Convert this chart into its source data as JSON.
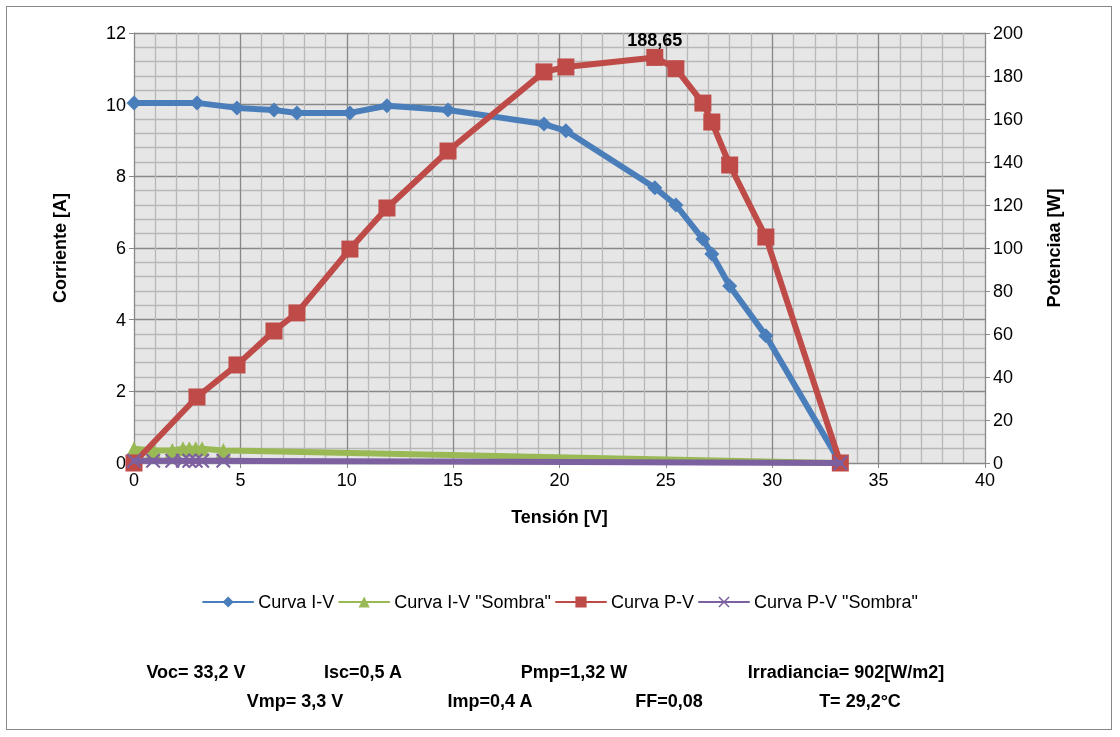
{
  "chart_data": {
    "type": "line",
    "xlabel": "Tensión [V]",
    "ylabel": "Corriente [A]",
    "y2label": "Potenciaa [W]",
    "xlim": [
      0,
      40
    ],
    "xticks": [
      0,
      5,
      10,
      15,
      20,
      25,
      30,
      35,
      40
    ],
    "ylim": [
      0,
      12
    ],
    "yticks": [
      0,
      2,
      4,
      6,
      8,
      10,
      12
    ],
    "y2lim": [
      0,
      200
    ],
    "y2ticks": [
      0,
      20,
      40,
      60,
      80,
      100,
      120,
      140,
      160,
      180,
      200
    ],
    "grid": true,
    "legend": "bottom",
    "series": [
      {
        "name": "Curva I-V",
        "color": "#4a7ebb",
        "marker": "diamond",
        "x": [
          0,
          2.96,
          4.84,
          6.58,
          7.66,
          10.15,
          11.89,
          14.76,
          19.27,
          20.3,
          24.48,
          25.47,
          26.74,
          27.16,
          28.0,
          29.7,
          33.2
        ],
        "values": [
          10.05,
          10.05,
          9.91,
          9.85,
          9.77,
          9.77,
          9.97,
          9.85,
          9.46,
          9.27,
          7.68,
          7.2,
          6.25,
          5.83,
          4.94,
          3.55,
          0
        ]
      },
      {
        "name": "Curva I-V \"Sombra\"",
        "color": "#98b954",
        "marker": "triangle",
        "x": [
          0,
          0.9,
          1.8,
          2.3,
          2.6,
          2.9,
          3.2,
          4.2,
          33.2
        ],
        "values": [
          0.4,
          0.35,
          0.35,
          0.4,
          0.4,
          0.4,
          0.4,
          0.35,
          0
        ]
      },
      {
        "name": "Curva P-V",
        "color": "#be4b48",
        "marker": "square",
        "axis": "y2",
        "x": [
          0,
          2.96,
          4.84,
          6.58,
          7.66,
          10.15,
          11.89,
          14.76,
          19.27,
          20.3,
          24.48,
          25.47,
          26.74,
          27.16,
          28.0,
          29.7,
          33.2
        ],
        "values": [
          0,
          30.7,
          45.6,
          61.4,
          69.8,
          99.5,
          118.6,
          145.1,
          181.9,
          184.2,
          188.65,
          183.4,
          167.4,
          158.6,
          138.6,
          105.1,
          0
        ],
        "value_labels": [
          null,
          null,
          null,
          null,
          null,
          null,
          null,
          null,
          null,
          null,
          "188,65",
          null,
          null,
          null,
          null,
          null,
          null
        ]
      },
      {
        "name": "Curva P-V \"Sombra\"",
        "color": "#7d60a0",
        "marker": "cross",
        "axis": "y2",
        "x": [
          0,
          0.9,
          1.8,
          2.3,
          2.6,
          2.9,
          3.2,
          4.2,
          33.2
        ],
        "values": [
          1,
          1,
          1,
          1,
          1,
          1,
          1,
          1,
          0
        ]
      }
    ],
    "annotations": [
      "Voc= 33,2 V",
      "Isc=0,5 A",
      "Pmp=1,32 W",
      "Irradiancia= 902[W/m2]",
      "Vmp= 3,3 V",
      "Imp=0,4 A",
      "FF=0,08",
      "T= 29,2°C"
    ]
  }
}
